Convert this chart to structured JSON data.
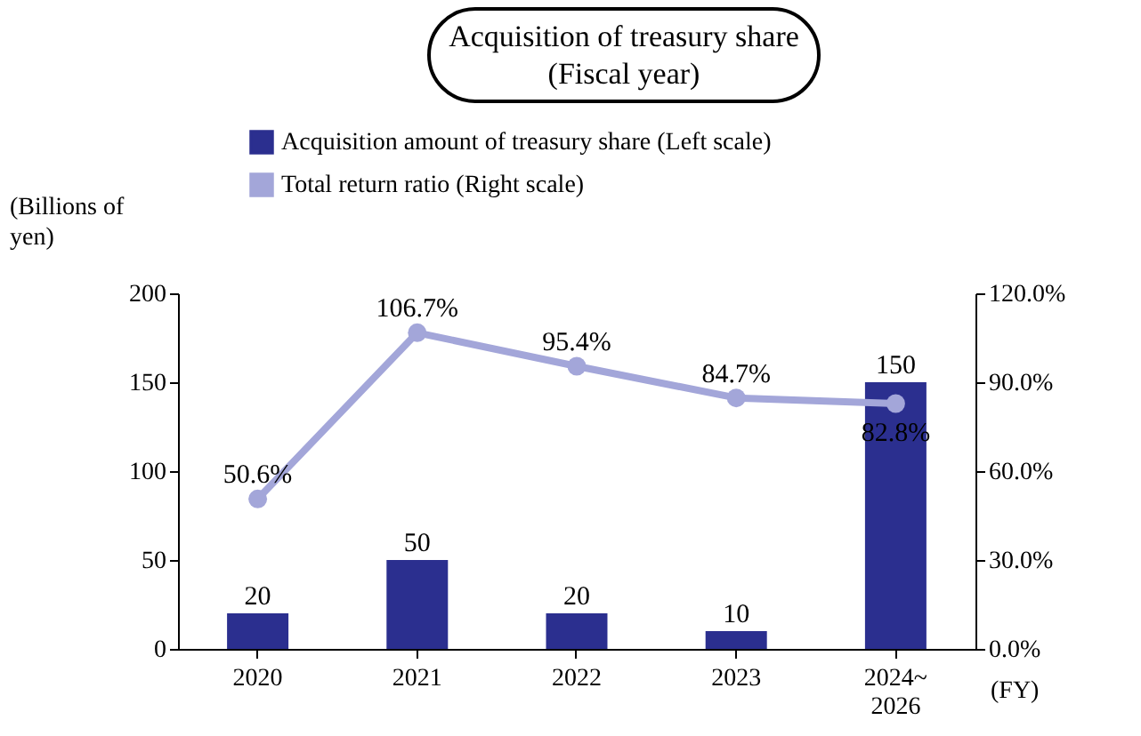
{
  "chart_data": {
    "type": "bar",
    "title": "Acquisition of treasury share (Fiscal year)",
    "ylabel": "(Billions of yen)",
    "xlabel": "(FY)",
    "categories": [
      "2020",
      "2021",
      "2022",
      "2023",
      "2024~2026"
    ],
    "series": [
      {
        "name": "Acquisition amount of treasury share (Left scale)",
        "color": "#2b2f8f",
        "values": [
          20,
          50,
          20,
          10,
          150
        ],
        "value_labels": [
          "20",
          "50",
          "20",
          "10",
          "150"
        ]
      },
      {
        "name": "Total return ratio (Right scale)",
        "type": "line",
        "axis": "y2",
        "color": "#a3a6d9",
        "values": [
          50.6,
          106.7,
          95.4,
          84.7,
          82.8
        ],
        "value_labels": [
          "50.6%",
          "106.7%",
          "95.4%",
          "84.7%",
          "82.8%"
        ]
      }
    ],
    "ylim": [
      0,
      200
    ],
    "yticks": [
      0,
      50,
      100,
      150,
      200
    ],
    "y2lim": [
      0,
      120
    ],
    "y2ticks": [
      {
        "value": 0,
        "label": "0.0%"
      },
      {
        "value": 30,
        "label": "30.0%"
      },
      {
        "value": 60,
        "label": "60.0%"
      },
      {
        "value": 90,
        "label": "90.0%"
      },
      {
        "value": 120,
        "label": "120.0%"
      }
    ],
    "grid": false,
    "legend": "top",
    "marker": "circle",
    "line_style": "solid"
  }
}
